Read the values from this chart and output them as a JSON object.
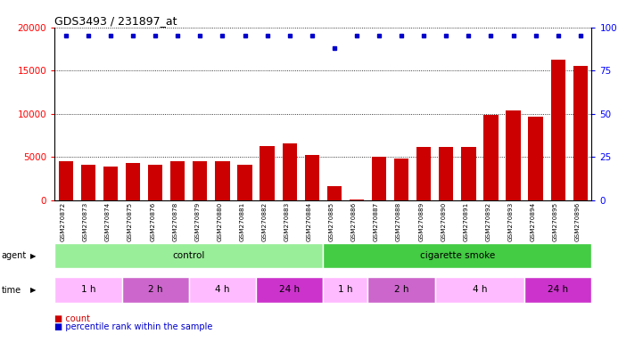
{
  "title": "GDS3493 / 231897_at",
  "samples": [
    "GSM270872",
    "GSM270873",
    "GSM270874",
    "GSM270875",
    "GSM270876",
    "GSM270878",
    "GSM270879",
    "GSM270880",
    "GSM270881",
    "GSM270882",
    "GSM270883",
    "GSM270884",
    "GSM270885",
    "GSM270886",
    "GSM270887",
    "GSM270888",
    "GSM270889",
    "GSM270890",
    "GSM270891",
    "GSM270892",
    "GSM270893",
    "GSM270894",
    "GSM270895",
    "GSM270896"
  ],
  "counts": [
    4500,
    4100,
    3900,
    4300,
    4100,
    4500,
    4500,
    4500,
    4100,
    6300,
    6600,
    5200,
    1600,
    100,
    5000,
    4800,
    6200,
    6100,
    6200,
    9900,
    10400,
    9700,
    16300,
    15500
  ],
  "percentile_ranks": [
    95,
    95,
    95,
    95,
    95,
    95,
    95,
    95,
    95,
    95,
    95,
    95,
    88,
    95,
    95,
    95,
    95,
    95,
    95,
    95,
    95,
    95,
    95,
    95
  ],
  "bar_color": "#cc0000",
  "dot_color": "#0000cc",
  "ylim_left": [
    0,
    20000
  ],
  "ylim_right": [
    0,
    100
  ],
  "yticks_left": [
    0,
    5000,
    10000,
    15000,
    20000
  ],
  "yticks_right": [
    0,
    25,
    50,
    75,
    100
  ],
  "agent_groups": [
    {
      "label": "control",
      "start": 0,
      "end": 12,
      "color": "#99ee99"
    },
    {
      "label": "cigarette smoke",
      "start": 12,
      "end": 24,
      "color": "#44cc44"
    }
  ],
  "time_groups": [
    {
      "label": "1 h",
      "start": 0,
      "end": 3,
      "color": "#ffbbff"
    },
    {
      "label": "2 h",
      "start": 3,
      "end": 6,
      "color": "#dd77dd"
    },
    {
      "label": "4 h",
      "start": 6,
      "end": 9,
      "color": "#ffbbff"
    },
    {
      "label": "24 h",
      "start": 9,
      "end": 12,
      "color": "#cc44cc"
    },
    {
      "label": "1 h",
      "start": 12,
      "end": 14,
      "color": "#ffbbff"
    },
    {
      "label": "2 h",
      "start": 14,
      "end": 17,
      "color": "#dd77dd"
    },
    {
      "label": "4 h",
      "start": 17,
      "end": 21,
      "color": "#ffbbff"
    },
    {
      "label": "24 h",
      "start": 21,
      "end": 24,
      "color": "#cc44cc"
    }
  ]
}
